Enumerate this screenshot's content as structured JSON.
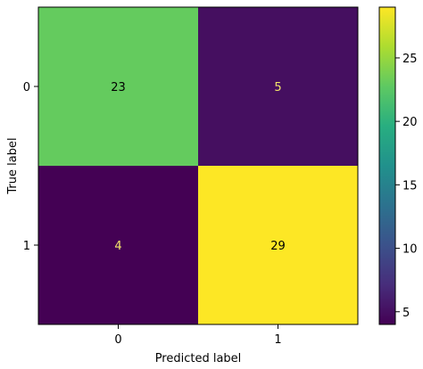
{
  "chart_data": {
    "type": "heatmap",
    "title": "",
    "xlabel": "Predicted label",
    "ylabel": "True label",
    "x_categories": [
      "0",
      "1"
    ],
    "y_categories": [
      "0",
      "1"
    ],
    "matrix": [
      [
        23,
        5
      ],
      [
        4,
        29
      ]
    ],
    "colormap": "viridis",
    "colorbar": {
      "range": [
        4,
        29
      ],
      "ticks": [
        "5",
        "10",
        "15",
        "20",
        "25"
      ]
    },
    "grid": false,
    "colors": {
      "dark_text": "#000000",
      "light_text": "#f3e66a"
    }
  }
}
